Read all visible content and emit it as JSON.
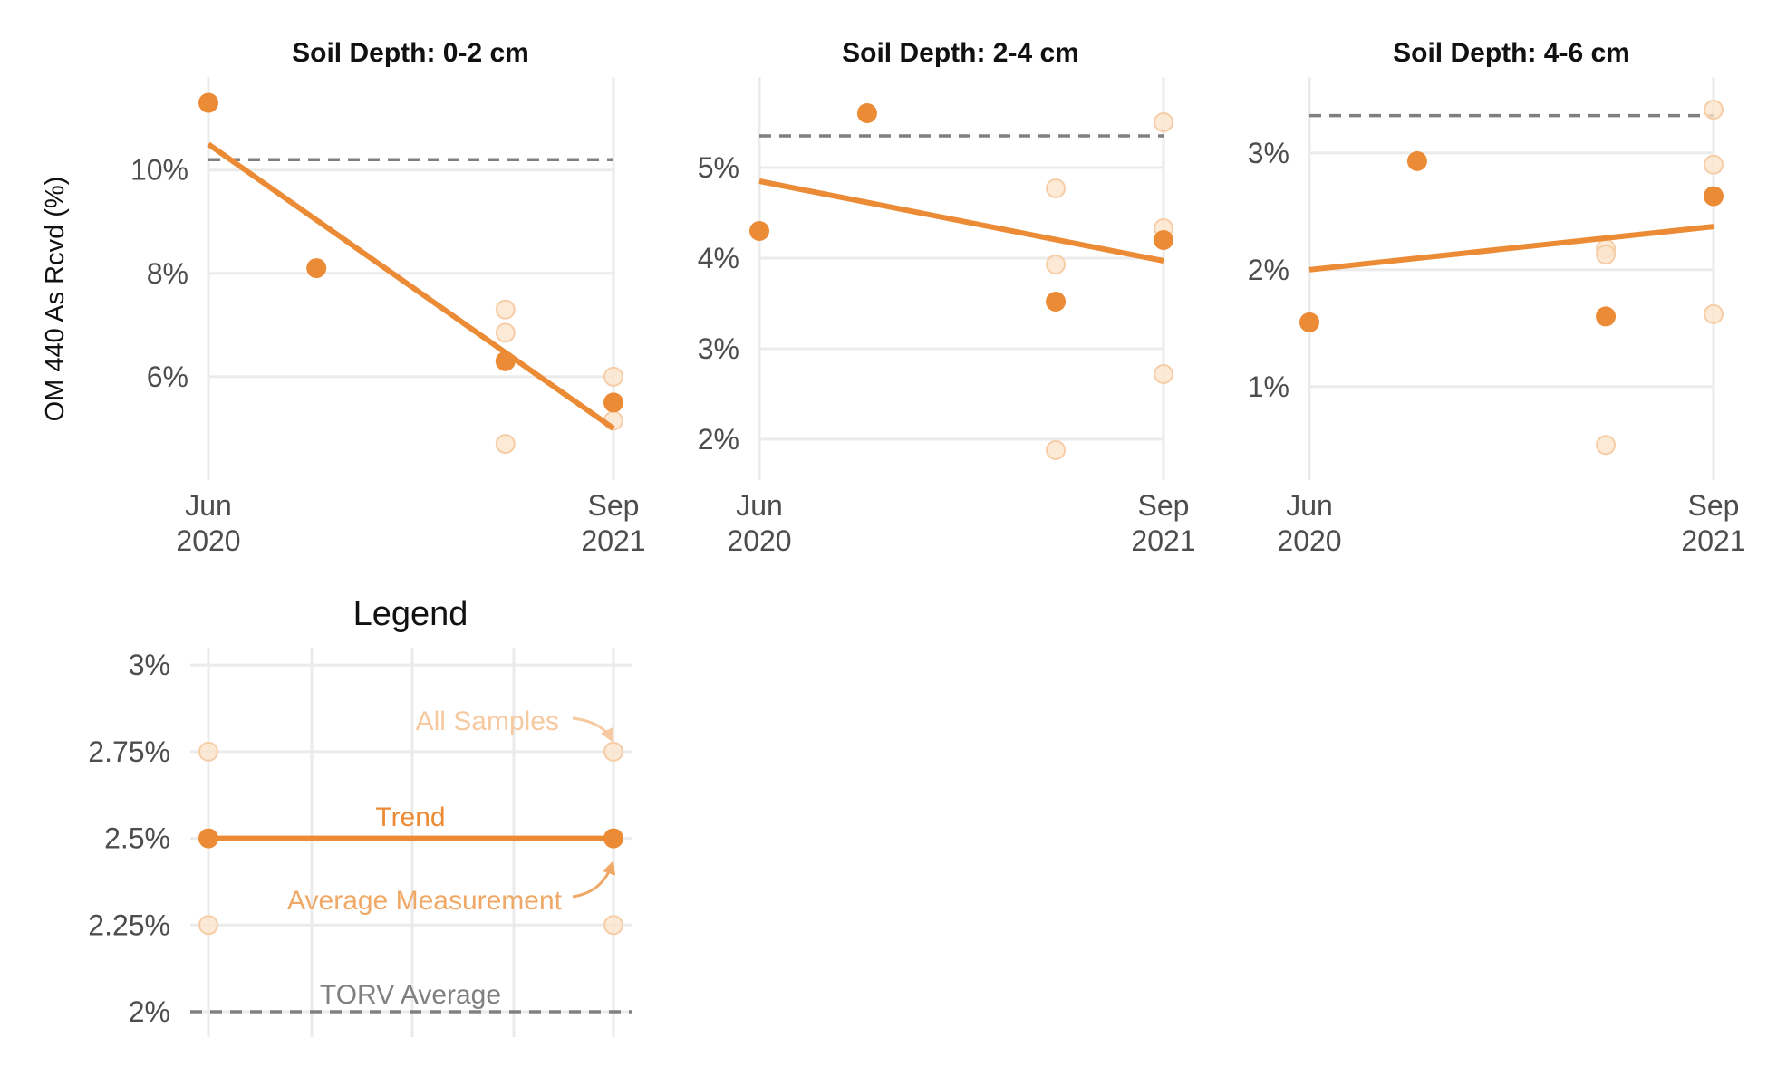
{
  "colors": {
    "accent": "#ec8b35",
    "faint_fill": "#fbe3cc",
    "faint_stroke": "#f6cda6",
    "grid": "#ebebeb",
    "reference": "#808080",
    "tick_text": "#4d4d4d"
  },
  "ylabel": "OM 440 As Rcvd (%)",
  "x_ticks": [
    {
      "date": "2020-06",
      "month": "Jun",
      "year": "2020"
    },
    {
      "date": "2021-09",
      "month": "Sep",
      "year": "2021"
    }
  ],
  "chart_data": [
    {
      "type": "scatter",
      "title": "Soil Depth: 0-2 cm",
      "ylabel": "OM 440 As Rcvd (%)",
      "ylim": [
        4.0,
        11.8
      ],
      "y_ticks": [
        {
          "v": 6,
          "label": "6%"
        },
        {
          "v": 8,
          "label": "8%"
        },
        {
          "v": 10,
          "label": "10%"
        }
      ],
      "reference_line": {
        "name": "TORV Average",
        "y": 10.2
      },
      "trend": {
        "from": {
          "x": "2020-06",
          "y": 10.5
        },
        "to": {
          "x": "2021-09",
          "y": 5.0
        }
      },
      "average_measurement": [
        {
          "x": "2020-06",
          "y": 11.3
        },
        {
          "x": "2020-10",
          "y": 8.1
        },
        {
          "x": "2021-05",
          "y": 6.3
        },
        {
          "x": "2021-09",
          "y": 5.5
        }
      ],
      "all_samples": [
        {
          "x": "2021-05",
          "y": 7.3
        },
        {
          "x": "2021-05",
          "y": 6.85
        },
        {
          "x": "2021-05",
          "y": 4.7
        },
        {
          "x": "2021-09",
          "y": 6.0
        },
        {
          "x": "2021-09",
          "y": 5.15
        }
      ]
    },
    {
      "type": "scatter",
      "title": "Soil Depth: 2-4 cm",
      "ylim": [
        1.55,
        6.0
      ],
      "y_ticks": [
        {
          "v": 2,
          "label": "2%"
        },
        {
          "v": 3,
          "label": "3%"
        },
        {
          "v": 4,
          "label": "4%"
        },
        {
          "v": 5,
          "label": "5%"
        }
      ],
      "reference_line": {
        "name": "TORV Average",
        "y": 5.35
      },
      "trend": {
        "from": {
          "x": "2020-06",
          "y": 4.85
        },
        "to": {
          "x": "2021-09",
          "y": 3.97
        }
      },
      "average_measurement": [
        {
          "x": "2020-06",
          "y": 4.3
        },
        {
          "x": "2020-10",
          "y": 5.6
        },
        {
          "x": "2021-05",
          "y": 3.52
        },
        {
          "x": "2021-09",
          "y": 4.2
        }
      ],
      "all_samples": [
        {
          "x": "2021-05",
          "y": 4.77
        },
        {
          "x": "2021-05",
          "y": 3.93
        },
        {
          "x": "2021-05",
          "y": 1.88
        },
        {
          "x": "2021-09",
          "y": 5.5
        },
        {
          "x": "2021-09",
          "y": 4.33
        },
        {
          "x": "2021-09",
          "y": 2.72
        }
      ]
    },
    {
      "type": "scatter",
      "title": "Soil Depth: 4-6 cm",
      "ylim": [
        0.2,
        3.65
      ],
      "y_ticks": [
        {
          "v": 1,
          "label": "1%"
        },
        {
          "v": 2,
          "label": "2%"
        },
        {
          "v": 3,
          "label": "3%"
        }
      ],
      "reference_line": {
        "name": "TORV Average",
        "y": 3.32
      },
      "trend": {
        "from": {
          "x": "2020-06",
          "y": 2.0
        },
        "to": {
          "x": "2021-09",
          "y": 2.37
        }
      },
      "average_measurement": [
        {
          "x": "2020-06",
          "y": 1.55
        },
        {
          "x": "2020-10",
          "y": 2.93
        },
        {
          "x": "2021-05",
          "y": 1.6
        },
        {
          "x": "2021-09",
          "y": 2.63
        }
      ],
      "all_samples": [
        {
          "x": "2021-05",
          "y": 2.18
        },
        {
          "x": "2021-05",
          "y": 2.13
        },
        {
          "x": "2021-05",
          "y": 0.5
        },
        {
          "x": "2021-09",
          "y": 3.37
        },
        {
          "x": "2021-09",
          "y": 2.9
        },
        {
          "x": "2021-09",
          "y": 1.62
        }
      ]
    },
    {
      "type": "scatter",
      "title": "Legend",
      "ylim": [
        1.94,
        3.05
      ],
      "y_ticks": [
        {
          "v": 2.0,
          "label": "2%"
        },
        {
          "v": 2.25,
          "label": "2.25%"
        },
        {
          "v": 2.5,
          "label": "2.5%"
        },
        {
          "v": 2.75,
          "label": "2.75%"
        },
        {
          "v": 3.0,
          "label": "3%"
        }
      ],
      "reference_line": {
        "name": "TORV Average",
        "y": 2.0
      },
      "trend": {
        "from": {
          "x": 0,
          "y": 2.5
        },
        "to": {
          "x": 4,
          "y": 2.5
        }
      },
      "average_measurement": [
        {
          "x": 0,
          "y": 2.5
        },
        {
          "x": 4,
          "y": 2.5
        }
      ],
      "all_samples": [
        {
          "x": 0,
          "y": 2.75
        },
        {
          "x": 0,
          "y": 2.25
        },
        {
          "x": 4,
          "y": 2.75
        },
        {
          "x": 4,
          "y": 2.25
        }
      ],
      "annotations": {
        "all_samples": "All Samples",
        "trend": "Trend",
        "average_measurement": "Average Measurement",
        "reference": "TORV Average"
      }
    }
  ]
}
